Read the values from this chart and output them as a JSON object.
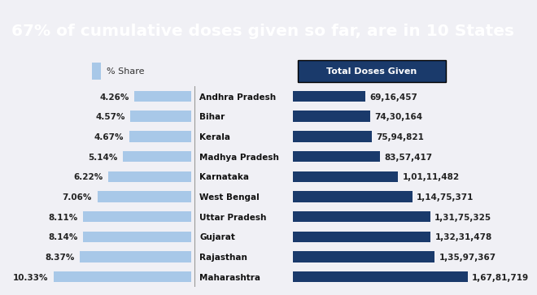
{
  "title": "67% of cumulative doses given so far, are in 10 States",
  "title_bg": "#1a3a6b",
  "title_color": "#ffffff",
  "bg_color": "#f0f0f5",
  "states": [
    "Andhra Pradesh",
    "Bihar",
    "Kerala",
    "Madhya Pradesh",
    "Karnataka",
    "West Bengal",
    "Uttar Pradesh",
    "Gujarat",
    "Rajasthan",
    "Maharashtra"
  ],
  "pct_share": [
    4.26,
    4.57,
    4.67,
    5.14,
    6.22,
    7.06,
    8.11,
    8.14,
    8.37,
    10.33
  ],
  "total_doses": [
    6916457,
    7430164,
    7594821,
    8357417,
    10111482,
    11475371,
    13175325,
    13231478,
    13597367,
    16781719
  ],
  "total_doses_labels": [
    "69,16,457",
    "74,30,164",
    "75,94,821",
    "83,57,417",
    "1,01,11,482",
    "1,14,75,371",
    "1,31,75,325",
    "1,32,31,478",
    "1,35,97,367",
    "1,67,81,719"
  ],
  "pct_labels": [
    "4.26%",
    "4.57%",
    "4.67%",
    "5.14%",
    "6.22%",
    "7.06%",
    "8.11%",
    "8.14%",
    "8.37%",
    "10.33%"
  ],
  "left_bar_color": "#a8c8e8",
  "right_bar_color": "#1a3a6b",
  "legend_pct_color": "#a8c8e8",
  "legend_doses_bg": "#1a3a6b",
  "legend_doses_color": "#ffffff",
  "orange_line_color": "#c87840",
  "bar_height": 0.55
}
